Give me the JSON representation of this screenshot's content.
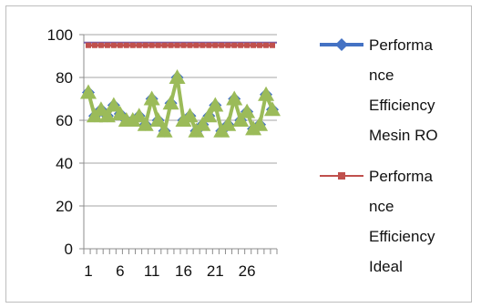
{
  "chart_data": {
    "type": "line",
    "x": [
      1,
      2,
      3,
      4,
      5,
      6,
      7,
      8,
      9,
      10,
      11,
      12,
      13,
      14,
      15,
      16,
      17,
      18,
      19,
      20,
      21,
      22,
      23,
      24,
      25,
      26,
      27,
      28,
      29,
      30
    ],
    "xtick_labels": [
      "1",
      "6",
      "11",
      "16",
      "21",
      "26"
    ],
    "yticks": [
      0,
      20,
      40,
      60,
      80,
      100
    ],
    "ylim": [
      0,
      100
    ],
    "grid": true,
    "legend_position": "right",
    "series": [
      {
        "name_lines": [
          "Performa",
          "nce",
          "Efficiency",
          "Mesin RO"
        ],
        "color": "#4472C4",
        "marker": "diamond",
        "values": [
          73,
          62,
          65,
          62,
          67,
          63,
          60,
          60,
          62,
          58,
          70,
          60,
          55,
          68,
          80,
          60,
          62,
          55,
          58,
          62,
          67,
          55,
          58,
          70,
          60,
          64,
          56,
          58,
          72,
          65
        ]
      },
      {
        "name_lines": [
          "Performa",
          "nce",
          "Efficiency",
          "Ideal"
        ],
        "color": "#C0504D",
        "marker": "square",
        "values": [
          95,
          95,
          95,
          95,
          95,
          95,
          95,
          95,
          95,
          95,
          95,
          95,
          95,
          95,
          95,
          95,
          95,
          95,
          95,
          95,
          95,
          95,
          95,
          95,
          95,
          95,
          95,
          95,
          95,
          95
        ]
      }
    ],
    "overlay_series": {
      "color": "#9BBB59",
      "marker": "triangle",
      "values": [
        73,
        62,
        65,
        62,
        67,
        63,
        60,
        60,
        62,
        58,
        70,
        60,
        55,
        68,
        80,
        60,
        62,
        55,
        58,
        62,
        67,
        55,
        58,
        70,
        60,
        64,
        56,
        58,
        72,
        65
      ]
    }
  }
}
